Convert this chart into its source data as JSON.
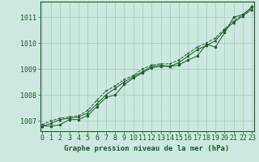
{
  "title": "Graphe pression niveau de la mer (hPa)",
  "bg_color": "#cce8e0",
  "plot_bg_color": "#cce8e0",
  "line_color": "#1a5c2a",
  "grid_color": "#a8ccc0",
  "x_min": 0,
  "x_max": 23,
  "y_min": 1006.6,
  "y_max": 1011.6,
  "y_ticks": [
    1007,
    1008,
    1009,
    1010,
    1011
  ],
  "x_ticks": [
    0,
    1,
    2,
    3,
    4,
    5,
    6,
    7,
    8,
    9,
    10,
    11,
    12,
    13,
    14,
    15,
    16,
    17,
    18,
    19,
    20,
    21,
    22,
    23
  ],
  "series1": [
    1006.8,
    1006.8,
    1006.85,
    1007.05,
    1007.05,
    1007.2,
    1007.55,
    1007.9,
    1008.0,
    1008.4,
    1008.65,
    1008.85,
    1009.05,
    1009.1,
    1009.1,
    1009.15,
    1009.35,
    1009.5,
    1009.95,
    1009.85,
    1010.4,
    1011.0,
    1011.1,
    1011.4
  ],
  "series2": [
    1006.8,
    1006.9,
    1007.05,
    1007.1,
    1007.15,
    1007.3,
    1007.65,
    1008.0,
    1008.25,
    1008.5,
    1008.7,
    1008.9,
    1009.1,
    1009.15,
    1009.1,
    1009.25,
    1009.5,
    1009.75,
    1009.9,
    1010.1,
    1010.5,
    1010.8,
    1011.05,
    1011.3
  ],
  "series3": [
    1006.85,
    1007.0,
    1007.1,
    1007.15,
    1007.2,
    1007.4,
    1007.8,
    1008.15,
    1008.35,
    1008.6,
    1008.75,
    1009.0,
    1009.15,
    1009.2,
    1009.2,
    1009.35,
    1009.6,
    1009.85,
    1010.0,
    1010.2,
    1010.55,
    1010.85,
    1011.1,
    1011.35
  ],
  "tick_fontsize": 6,
  "title_fontsize": 6.5,
  "lw": 0.7,
  "markersize": 2.0
}
